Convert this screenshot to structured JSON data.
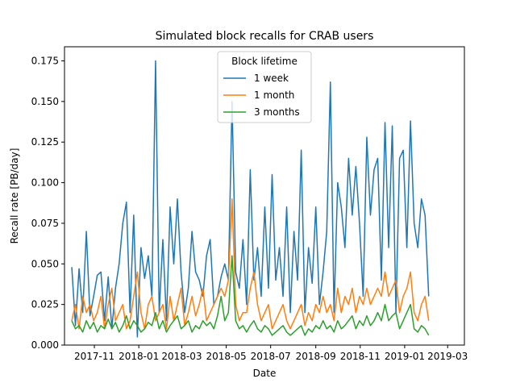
{
  "chart_data": {
    "type": "line",
    "title": "Simulated block recalls for CRAB users",
    "xlabel": "Date",
    "ylabel": "Recall rate [PB/day]",
    "x_axis_kind": "date",
    "xlim": [
      "2017-09-21",
      "2019-03-24"
    ],
    "ylim": [
      0,
      0.1837
    ],
    "grid": false,
    "legend": {
      "title": "Block lifetime",
      "placement": "upper-center"
    },
    "x_ticks": [
      {
        "date": "2017-11-01",
        "label": "2017-11"
      },
      {
        "date": "2018-01-01",
        "label": "2018-01"
      },
      {
        "date": "2018-03-01",
        "label": "2018-03"
      },
      {
        "date": "2018-05-01",
        "label": "2018-05"
      },
      {
        "date": "2018-07-01",
        "label": "2018-07"
      },
      {
        "date": "2018-09-01",
        "label": "2018-09"
      },
      {
        "date": "2018-11-01",
        "label": "2018-11"
      },
      {
        "date": "2019-01-01",
        "label": "2019-01"
      },
      {
        "date": "2019-03-01",
        "label": "2019-03"
      }
    ],
    "y_ticks": [
      {
        "value": 0.0,
        "label": "0.000"
      },
      {
        "value": 0.025,
        "label": "0.025"
      },
      {
        "value": 0.05,
        "label": "0.050"
      },
      {
        "value": 0.075,
        "label": "0.075"
      },
      {
        "value": 0.1,
        "label": "0.100"
      },
      {
        "value": 0.125,
        "label": "0.125"
      },
      {
        "value": 0.15,
        "label": "0.150"
      },
      {
        "value": 0.175,
        "label": "0.175"
      }
    ],
    "series": [
      {
        "name": "1 week",
        "color": "#1f77b4",
        "x": [
          "2017-10-01",
          "2017-10-06",
          "2017-10-11",
          "2017-10-16",
          "2017-10-21",
          "2017-10-26",
          "2017-10-31",
          "2017-11-05",
          "2017-11-10",
          "2017-11-15",
          "2017-11-20",
          "2017-11-25",
          "2017-11-30",
          "2017-12-05",
          "2017-12-10",
          "2017-12-15",
          "2017-12-20",
          "2017-12-25",
          "2017-12-30",
          "2018-01-04",
          "2018-01-09",
          "2018-01-14",
          "2018-01-19",
          "2018-01-24",
          "2018-01-29",
          "2018-02-03",
          "2018-02-08",
          "2018-02-13",
          "2018-02-18",
          "2018-02-23",
          "2018-02-28",
          "2018-03-05",
          "2018-03-10",
          "2018-03-15",
          "2018-03-20",
          "2018-03-25",
          "2018-03-30",
          "2018-04-04",
          "2018-04-09",
          "2018-04-14",
          "2018-04-19",
          "2018-04-24",
          "2018-04-29",
          "2018-05-04",
          "2018-05-09",
          "2018-05-14",
          "2018-05-19",
          "2018-05-24",
          "2018-05-29",
          "2018-06-03",
          "2018-06-08",
          "2018-06-13",
          "2018-06-18",
          "2018-06-23",
          "2018-06-28",
          "2018-07-03",
          "2018-07-08",
          "2018-07-13",
          "2018-07-18",
          "2018-07-23",
          "2018-07-28",
          "2018-08-02",
          "2018-08-07",
          "2018-08-12",
          "2018-08-17",
          "2018-08-22",
          "2018-08-27",
          "2018-09-01",
          "2018-09-06",
          "2018-09-11",
          "2018-09-16",
          "2018-09-21",
          "2018-09-26",
          "2018-10-01",
          "2018-10-06",
          "2018-10-11",
          "2018-10-16",
          "2018-10-21",
          "2018-10-26",
          "2018-10-31",
          "2018-11-05",
          "2018-11-10",
          "2018-11-15",
          "2018-11-20",
          "2018-11-25",
          "2018-11-30",
          "2018-12-05",
          "2018-12-10",
          "2018-12-15",
          "2018-12-20",
          "2018-12-25",
          "2018-12-30",
          "2019-01-04",
          "2019-01-09",
          "2019-01-14",
          "2019-01-19",
          "2019-01-24",
          "2019-01-29",
          "2019-02-03"
        ],
        "y": [
          0.048,
          0.012,
          0.047,
          0.02,
          0.07,
          0.018,
          0.03,
          0.043,
          0.045,
          0.015,
          0.042,
          0.01,
          0.035,
          0.05,
          0.075,
          0.088,
          0.02,
          0.08,
          0.005,
          0.06,
          0.041,
          0.055,
          0.03,
          0.175,
          0.02,
          0.065,
          0.015,
          0.085,
          0.05,
          0.09,
          0.045,
          0.02,
          0.035,
          0.07,
          0.045,
          0.04,
          0.03,
          0.055,
          0.065,
          0.025,
          0.03,
          0.042,
          0.05,
          0.04,
          0.15,
          0.045,
          0.035,
          0.065,
          0.025,
          0.108,
          0.04,
          0.06,
          0.03,
          0.085,
          0.035,
          0.105,
          0.04,
          0.06,
          0.03,
          0.085,
          0.02,
          0.07,
          0.04,
          0.12,
          0.02,
          0.06,
          0.038,
          0.085,
          0.025,
          0.045,
          0.07,
          0.162,
          0.02,
          0.1,
          0.085,
          0.06,
          0.115,
          0.08,
          0.11,
          0.075,
          0.03,
          0.128,
          0.08,
          0.108,
          0.115,
          0.04,
          0.137,
          0.06,
          0.135,
          0.02,
          0.115,
          0.12,
          0.06,
          0.138,
          0.075,
          0.06,
          0.09,
          0.08,
          0.03
        ]
      },
      {
        "name": "1 month",
        "color": "#ff7f0e",
        "x": [
          "2017-10-01",
          "2017-10-06",
          "2017-10-11",
          "2017-10-16",
          "2017-10-21",
          "2017-10-26",
          "2017-10-31",
          "2017-11-05",
          "2017-11-10",
          "2017-11-15",
          "2017-11-20",
          "2017-11-25",
          "2017-11-30",
          "2017-12-05",
          "2017-12-10",
          "2017-12-15",
          "2017-12-20",
          "2017-12-25",
          "2017-12-30",
          "2018-01-04",
          "2018-01-09",
          "2018-01-14",
          "2018-01-19",
          "2018-01-24",
          "2018-01-29",
          "2018-02-03",
          "2018-02-08",
          "2018-02-13",
          "2018-02-18",
          "2018-02-23",
          "2018-02-28",
          "2018-03-05",
          "2018-03-10",
          "2018-03-15",
          "2018-03-20",
          "2018-03-25",
          "2018-03-30",
          "2018-04-04",
          "2018-04-09",
          "2018-04-14",
          "2018-04-19",
          "2018-04-24",
          "2018-04-29",
          "2018-05-04",
          "2018-05-09",
          "2018-05-14",
          "2018-05-19",
          "2018-05-24",
          "2018-05-29",
          "2018-06-03",
          "2018-06-08",
          "2018-06-13",
          "2018-06-18",
          "2018-06-23",
          "2018-06-28",
          "2018-07-03",
          "2018-07-08",
          "2018-07-13",
          "2018-07-18",
          "2018-07-23",
          "2018-07-28",
          "2018-08-02",
          "2018-08-07",
          "2018-08-12",
          "2018-08-17",
          "2018-08-22",
          "2018-08-27",
          "2018-09-01",
          "2018-09-06",
          "2018-09-11",
          "2018-09-16",
          "2018-09-21",
          "2018-09-26",
          "2018-10-01",
          "2018-10-06",
          "2018-10-11",
          "2018-10-16",
          "2018-10-21",
          "2018-10-26",
          "2018-10-31",
          "2018-11-05",
          "2018-11-10",
          "2018-11-15",
          "2018-11-20",
          "2018-11-25",
          "2018-11-30",
          "2018-12-05",
          "2018-12-10",
          "2018-12-15",
          "2018-12-20",
          "2018-12-25",
          "2018-12-30",
          "2019-01-04",
          "2019-01-09",
          "2019-01-14",
          "2019-01-19",
          "2019-01-24",
          "2019-01-29",
          "2019-02-03"
        ],
        "y": [
          0.015,
          0.025,
          0.01,
          0.03,
          0.02,
          0.025,
          0.015,
          0.02,
          0.03,
          0.01,
          0.025,
          0.035,
          0.015,
          0.02,
          0.025,
          0.01,
          0.015,
          0.03,
          0.045,
          0.02,
          0.01,
          0.025,
          0.03,
          0.015,
          0.02,
          0.025,
          0.01,
          0.03,
          0.015,
          0.025,
          0.035,
          0.012,
          0.02,
          0.03,
          0.018,
          0.025,
          0.035,
          0.015,
          0.02,
          0.025,
          0.03,
          0.035,
          0.03,
          0.04,
          0.09,
          0.025,
          0.015,
          0.02,
          0.02,
          0.035,
          0.045,
          0.025,
          0.015,
          0.02,
          0.025,
          0.01,
          0.015,
          0.02,
          0.025,
          0.015,
          0.01,
          0.015,
          0.02,
          0.025,
          0.012,
          0.02,
          0.015,
          0.025,
          0.02,
          0.03,
          0.02,
          0.025,
          0.015,
          0.035,
          0.02,
          0.03,
          0.025,
          0.035,
          0.02,
          0.03,
          0.025,
          0.035,
          0.025,
          0.03,
          0.035,
          0.03,
          0.045,
          0.03,
          0.035,
          0.04,
          0.02,
          0.03,
          0.035,
          0.045,
          0.02,
          0.015,
          0.025,
          0.03,
          0.015
        ]
      },
      {
        "name": "3 months",
        "color": "#2ca02c",
        "x": [
          "2017-10-01",
          "2017-10-06",
          "2017-10-11",
          "2017-10-16",
          "2017-10-21",
          "2017-10-26",
          "2017-10-31",
          "2017-11-05",
          "2017-11-10",
          "2017-11-15",
          "2017-11-20",
          "2017-11-25",
          "2017-11-30",
          "2017-12-05",
          "2017-12-10",
          "2017-12-15",
          "2017-12-20",
          "2017-12-25",
          "2017-12-30",
          "2018-01-04",
          "2018-01-09",
          "2018-01-14",
          "2018-01-19",
          "2018-01-24",
          "2018-01-29",
          "2018-02-03",
          "2018-02-08",
          "2018-02-13",
          "2018-02-18",
          "2018-02-23",
          "2018-02-28",
          "2018-03-05",
          "2018-03-10",
          "2018-03-15",
          "2018-03-20",
          "2018-03-25",
          "2018-03-30",
          "2018-04-04",
          "2018-04-09",
          "2018-04-14",
          "2018-04-19",
          "2018-04-24",
          "2018-04-29",
          "2018-05-04",
          "2018-05-09",
          "2018-05-14",
          "2018-05-19",
          "2018-05-24",
          "2018-05-29",
          "2018-06-03",
          "2018-06-08",
          "2018-06-13",
          "2018-06-18",
          "2018-06-23",
          "2018-06-28",
          "2018-07-03",
          "2018-07-08",
          "2018-07-13",
          "2018-07-18",
          "2018-07-23",
          "2018-07-28",
          "2018-08-02",
          "2018-08-07",
          "2018-08-12",
          "2018-08-17",
          "2018-08-22",
          "2018-08-27",
          "2018-09-01",
          "2018-09-06",
          "2018-09-11",
          "2018-09-16",
          "2018-09-21",
          "2018-09-26",
          "2018-10-01",
          "2018-10-06",
          "2018-10-11",
          "2018-10-16",
          "2018-10-21",
          "2018-10-26",
          "2018-10-31",
          "2018-11-05",
          "2018-11-10",
          "2018-11-15",
          "2018-11-20",
          "2018-11-25",
          "2018-11-30",
          "2018-12-05",
          "2018-12-10",
          "2018-12-15",
          "2018-12-20",
          "2018-12-25",
          "2018-12-30",
          "2019-01-04",
          "2019-01-09",
          "2019-01-14",
          "2019-01-19",
          "2019-01-24",
          "2019-01-29",
          "2019-02-03"
        ],
        "y": [
          0.015,
          0.01,
          0.012,
          0.008,
          0.015,
          0.01,
          0.014,
          0.008,
          0.012,
          0.01,
          0.016,
          0.01,
          0.014,
          0.008,
          0.012,
          0.018,
          0.01,
          0.015,
          0.012,
          0.008,
          0.01,
          0.014,
          0.012,
          0.02,
          0.01,
          0.015,
          0.008,
          0.012,
          0.015,
          0.018,
          0.01,
          0.012,
          0.015,
          0.008,
          0.012,
          0.01,
          0.015,
          0.012,
          0.014,
          0.01,
          0.018,
          0.03,
          0.015,
          0.02,
          0.055,
          0.015,
          0.01,
          0.012,
          0.008,
          0.012,
          0.015,
          0.01,
          0.008,
          0.012,
          0.01,
          0.006,
          0.008,
          0.01,
          0.012,
          0.008,
          0.006,
          0.008,
          0.01,
          0.012,
          0.006,
          0.01,
          0.008,
          0.012,
          0.01,
          0.015,
          0.01,
          0.012,
          0.008,
          0.015,
          0.01,
          0.012,
          0.015,
          0.018,
          0.01,
          0.015,
          0.012,
          0.018,
          0.012,
          0.015,
          0.02,
          0.015,
          0.025,
          0.015,
          0.018,
          0.02,
          0.01,
          0.015,
          0.02,
          0.025,
          0.01,
          0.008,
          0.012,
          0.01,
          0.006
        ]
      }
    ]
  }
}
